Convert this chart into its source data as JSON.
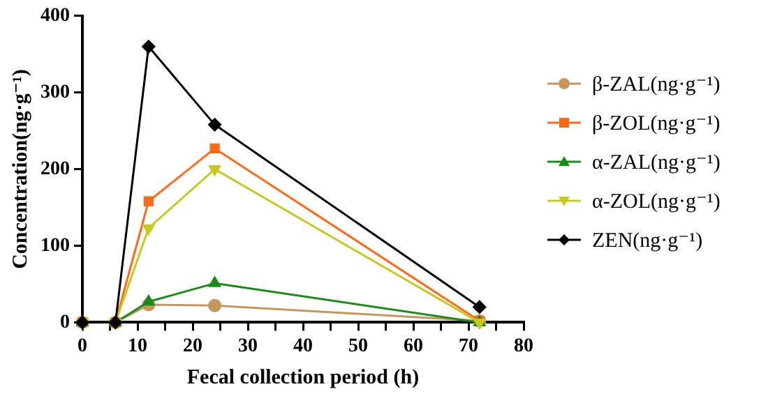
{
  "chart_data": {
    "type": "line",
    "xlabel": "Fecal collection period (h)",
    "ylabel": "Concentration(ng·g⁻¹)",
    "x": [
      0,
      6,
      12,
      24,
      72
    ],
    "series": [
      {
        "name": "β-ZAL(ng·g⁻¹)",
        "color": "#c8965a",
        "marker": "circle",
        "values": [
          0,
          0,
          23,
          22,
          2
        ]
      },
      {
        "name": "β-ZOL(ng·g⁻¹)",
        "color": "#ff6a1a",
        "marker": "square",
        "values": [
          0,
          0,
          158,
          227,
          2
        ]
      },
      {
        "name": "α-ZAL(ng·g⁻¹)",
        "color": "#1a8c1a",
        "marker": "triangle",
        "values": [
          0,
          0,
          27,
          51,
          0
        ]
      },
      {
        "name": "α-ZOL(ng·g⁻¹)",
        "color": "#c8c820",
        "marker": "triangle-down",
        "values": [
          0,
          0,
          123,
          200,
          0
        ]
      },
      {
        "name": "ZEN(ng·g⁻¹)",
        "color": "#000000",
        "marker": "diamond",
        "values": [
          0,
          0,
          360,
          258,
          20
        ]
      }
    ],
    "xlim": [
      0,
      80
    ],
    "xticks": [
      0,
      {
        "value": 5,
        "label": null
      },
      10,
      {
        "value": 15,
        "label": null
      },
      20,
      {
        "value": 25,
        "label": null
      },
      30,
      {
        "value": 35,
        "label": null
      },
      40,
      {
        "value": 45,
        "label": null
      },
      50,
      {
        "value": 55,
        "label": null
      },
      60,
      {
        "value": 65,
        "label": null
      },
      70,
      {
        "value": 75,
        "label": null
      },
      80
    ],
    "ylim": [
      0,
      400
    ],
    "yticks": [
      0,
      100,
      200,
      300,
      400
    ],
    "grid": false,
    "legend": "right",
    "line_style": "solid"
  }
}
